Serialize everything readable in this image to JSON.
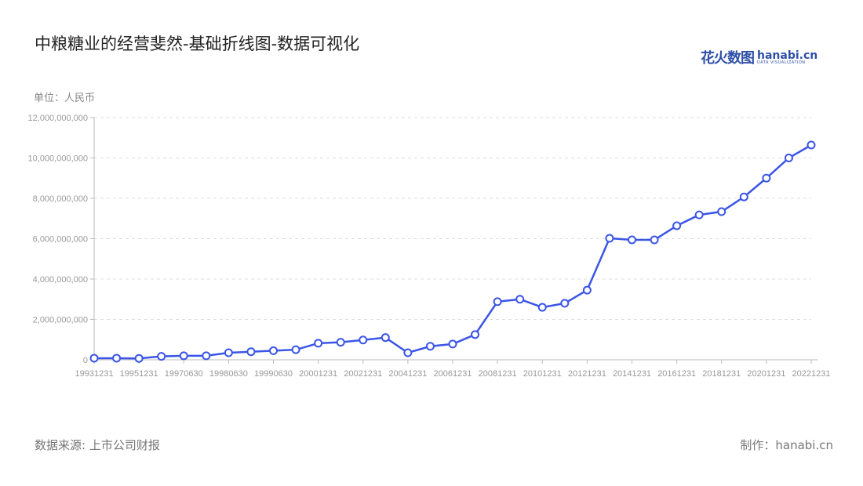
{
  "title": "中粮糖业的经营斐然-基础折线图-数据可视化",
  "logo": {
    "cn": "花火数图",
    "en": "hanabi.cn",
    "tagline": "DATA VISUALIZATION"
  },
  "unit_label": "单位：人民币",
  "source": "数据来源: 上市公司财报",
  "maker": "制作：hanabi.cn",
  "colors": {
    "line": "#3b55e6",
    "marker_fill": "#ffffff",
    "grid": "#dddddd",
    "axis": "#bbbbbb"
  },
  "chart_data": {
    "type": "line",
    "title": "中粮糖业的经营斐然-基础折线图-数据可视化",
    "ylabel": "单位：人民币",
    "categories": [
      "19931231",
      "",
      "19951231",
      "",
      "19970630",
      "",
      "19980630",
      "",
      "19990630",
      "",
      "20001231",
      "",
      "20021231",
      "",
      "20041231",
      "",
      "20061231",
      "",
      "20081231",
      "",
      "20101231",
      "",
      "20121231",
      "",
      "20141231",
      "",
      "20161231",
      "",
      "20181231",
      "",
      "20201231",
      "",
      "20221231"
    ],
    "values": [
      80000000,
      80000000,
      70000000,
      170000000,
      200000000,
      200000000,
      350000000,
      400000000,
      450000000,
      500000000,
      820000000,
      870000000,
      980000000,
      1100000000,
      350000000,
      670000000,
      780000000,
      1250000000,
      2880000000,
      3000000000,
      2600000000,
      2800000000,
      3450000000,
      6020000000,
      5940000000,
      5940000000,
      6640000000,
      7180000000,
      7340000000,
      8070000000,
      9000000000,
      10000000000,
      10640000000
    ],
    "yticks": [
      "0",
      "2,000,000,000",
      "4,000,000,000",
      "6,000,000,000",
      "8,000,000,000",
      "10,000,000,000",
      "12,000,000,000"
    ],
    "ylim": [
      0,
      12000000000
    ],
    "grid": true,
    "legend": "none"
  }
}
